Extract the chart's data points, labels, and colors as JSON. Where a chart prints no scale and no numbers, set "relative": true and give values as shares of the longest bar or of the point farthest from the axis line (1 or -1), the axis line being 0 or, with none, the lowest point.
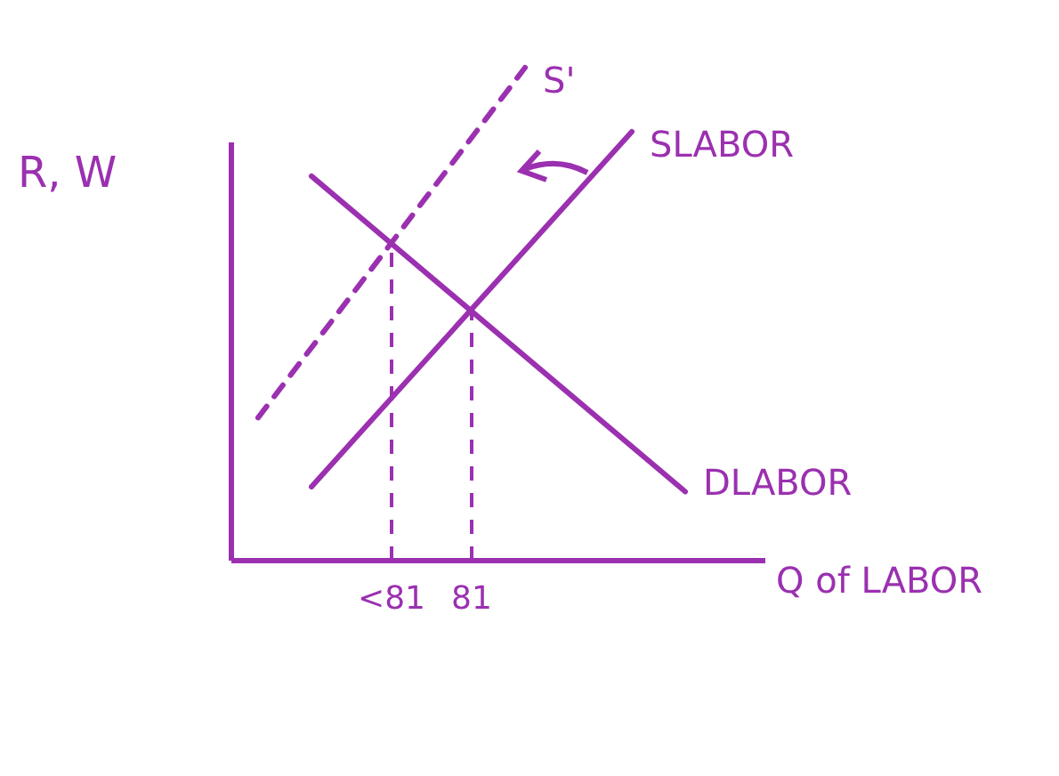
{
  "chart_data": {
    "type": "line",
    "relative": true,
    "xlabel": "Q of LABOR",
    "ylabel": "R, W",
    "categories": [
      null,
      null,
      null,
      null,
      null,
      null,
      "<81",
      null,
      null,
      "81",
      null,
      null,
      null,
      null,
      null,
      null,
      null,
      null,
      null,
      null,
      null
    ],
    "line_style": "solid",
    "marker": "none",
    "grid": false,
    "series": [
      {
        "name": "S'",
        "color": "#9b30b0",
        "values": [
          null,
          0.29,
          null,
          null,
          null,
          null,
          null,
          null,
          null,
          null,
          null,
          1,
          null,
          null,
          null,
          null,
          null,
          null,
          null,
          null,
          null
        ],
        "line_style": "dashed"
      },
      {
        "name": "SLABOR",
        "color": "#9b30b0",
        "values": [
          null,
          null,
          null,
          0.15,
          null,
          null,
          null,
          null,
          null,
          null,
          null,
          null,
          null,
          null,
          null,
          0.87,
          null,
          null,
          null,
          null,
          null
        ]
      },
      {
        "name": "DLABOR",
        "color": "#9b30b0",
        "values": [
          null,
          null,
          null,
          0.78,
          null,
          null,
          null,
          null,
          null,
          null,
          null,
          null,
          null,
          null,
          null,
          null,
          null,
          0.14,
          null,
          null,
          null
        ]
      }
    ],
    "ref_lines": [
      {
        "axis": "x",
        "value": "<81",
        "color": "#9b30b0",
        "line_style": "dashed"
      },
      {
        "axis": "x",
        "value": "81",
        "color": "#9b30b0",
        "line_style": "dashed"
      }
    ]
  }
}
